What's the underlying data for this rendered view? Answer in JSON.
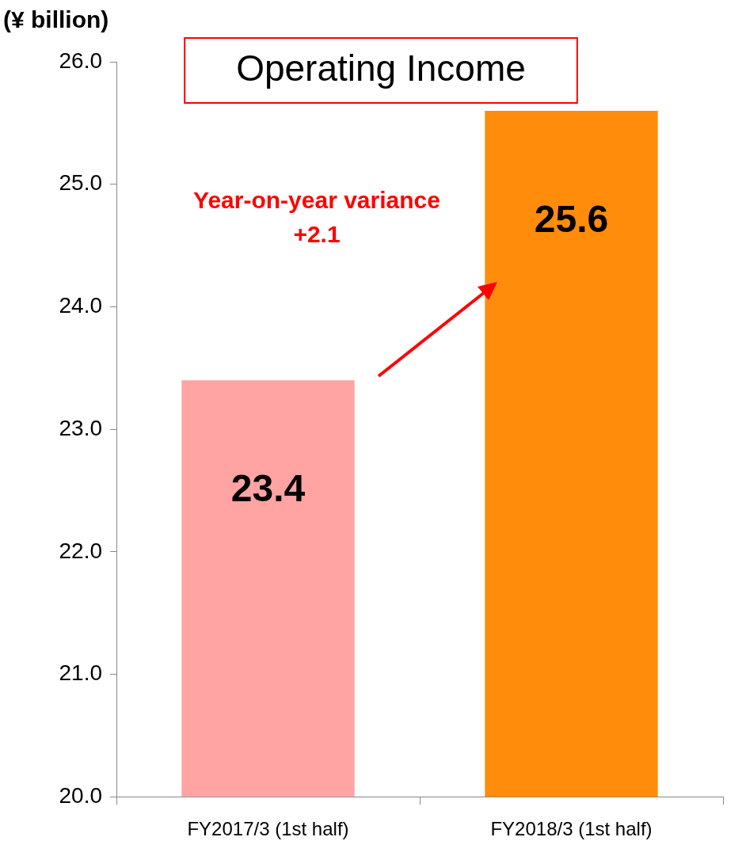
{
  "chart_data": {
    "type": "bar",
    "title": "Operating Income",
    "ylabel": "(¥ billion)",
    "categories": [
      "FY2017/3 (1st half)",
      "FY2018/3 (1st half)"
    ],
    "values": [
      23.4,
      25.6
    ],
    "colors": [
      "#ffa3a3",
      "#ff8c0a"
    ],
    "ylim": [
      20,
      26
    ],
    "yticks": [
      {
        "value": 20,
        "label": "20.0"
      },
      {
        "value": 21,
        "label": "21.0"
      },
      {
        "value": 22,
        "label": "22.0"
      },
      {
        "value": 23,
        "label": "23.0"
      },
      {
        "value": 24,
        "label": "24.0"
      },
      {
        "value": 25,
        "label": "25.0"
      },
      {
        "value": 26,
        "label": "26.0"
      }
    ],
    "grid": false,
    "legend": false,
    "data_labels": true,
    "annotations": [
      "Year-on-year variance\n+2.1"
    ]
  }
}
